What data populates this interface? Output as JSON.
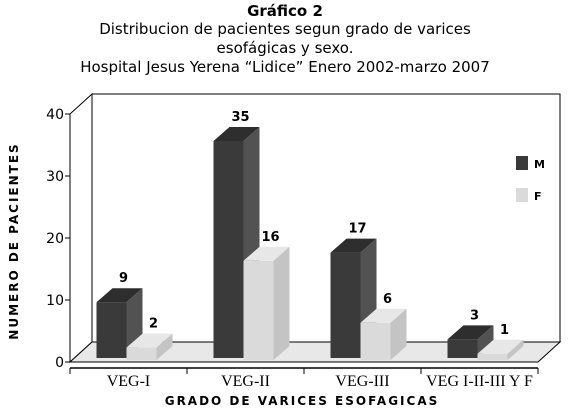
{
  "chart_data": {
    "type": "bar",
    "title": "Gráfico 2",
    "subtitle_lines": [
      "Distribucion de pacientes segun grado de varices",
      "esofágicas y sexo.",
      "Hospital Jesus Yerena “Lidice” Enero 2002-marzo 2007"
    ],
    "xlabel": "GRADO DE VARICES ESOFAGICAS",
    "ylabel": "NUMERO DE PACIENTES",
    "categories": [
      "VEG-I",
      "VEG-II",
      "VEG-III",
      "VEG I-II-III Y F"
    ],
    "series": [
      {
        "name": "M",
        "values": [
          9,
          35,
          17,
          3
        ],
        "color": "#3a3a3a"
      },
      {
        "name": "F",
        "values": [
          2,
          16,
          6,
          1
        ],
        "color": "#dadada"
      }
    ],
    "ylim": [
      0,
      40
    ],
    "yticks": [
      "0",
      "10",
      "20",
      "30",
      "40"
    ],
    "legend": "right",
    "grid": false
  }
}
